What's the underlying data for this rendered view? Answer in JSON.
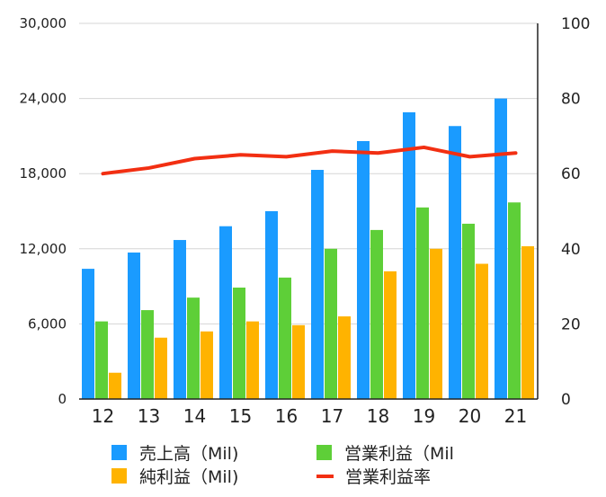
{
  "chart_data": {
    "type": "bar",
    "categories": [
      "12",
      "13",
      "14",
      "15",
      "16",
      "17",
      "18",
      "19",
      "20",
      "21"
    ],
    "series": [
      {
        "name": "売上高（Mil)",
        "kind": "bar",
        "axis": "left",
        "color": "#1a9bff",
        "values": [
          10400,
          11700,
          12700,
          13800,
          15000,
          18300,
          20600,
          22900,
          21800,
          24000
        ]
      },
      {
        "name": "営業利益（Mil",
        "kind": "bar",
        "axis": "left",
        "color": "#5ecf38",
        "values": [
          6200,
          7100,
          8100,
          8900,
          9700,
          12000,
          13500,
          15300,
          14000,
          15700
        ]
      },
      {
        "name": "純利益（Mil)",
        "kind": "bar",
        "axis": "left",
        "color": "#ffb300",
        "values": [
          2100,
          4900,
          5400,
          6200,
          5900,
          6600,
          10200,
          12000,
          10800,
          12200
        ]
      },
      {
        "name": "営業利益率",
        "kind": "line",
        "axis": "right",
        "color": "#f22f12",
        "values": [
          60,
          61.5,
          64,
          65,
          64.5,
          66,
          65.5,
          67,
          64.5,
          65.5
        ]
      }
    ],
    "ylim_left": [
      0,
      30000
    ],
    "ylim_right": [
      0,
      100
    ],
    "yticks_left": [
      0,
      6000,
      12000,
      18000,
      24000,
      30000
    ],
    "yticks_left_labels": [
      "0",
      "6,000",
      "12,000",
      "18,000",
      "24,000",
      "30,000"
    ],
    "yticks_right": [
      0,
      20,
      40,
      60,
      80,
      100
    ],
    "yticks_right_labels": [
      "0",
      "20",
      "40",
      "60",
      "80",
      "100"
    ],
    "grid": true,
    "legend_position": "bottom"
  },
  "legend": [
    {
      "label": "売上高（Mil)",
      "color": "#1a9bff",
      "kind": "bar"
    },
    {
      "label": "営業利益（Mil",
      "color": "#5ecf38",
      "kind": "bar"
    },
    {
      "label": "純利益（Mil)",
      "color": "#ffb300",
      "kind": "bar"
    },
    {
      "label": "営業利益率",
      "color": "#f22f12",
      "kind": "line"
    }
  ]
}
